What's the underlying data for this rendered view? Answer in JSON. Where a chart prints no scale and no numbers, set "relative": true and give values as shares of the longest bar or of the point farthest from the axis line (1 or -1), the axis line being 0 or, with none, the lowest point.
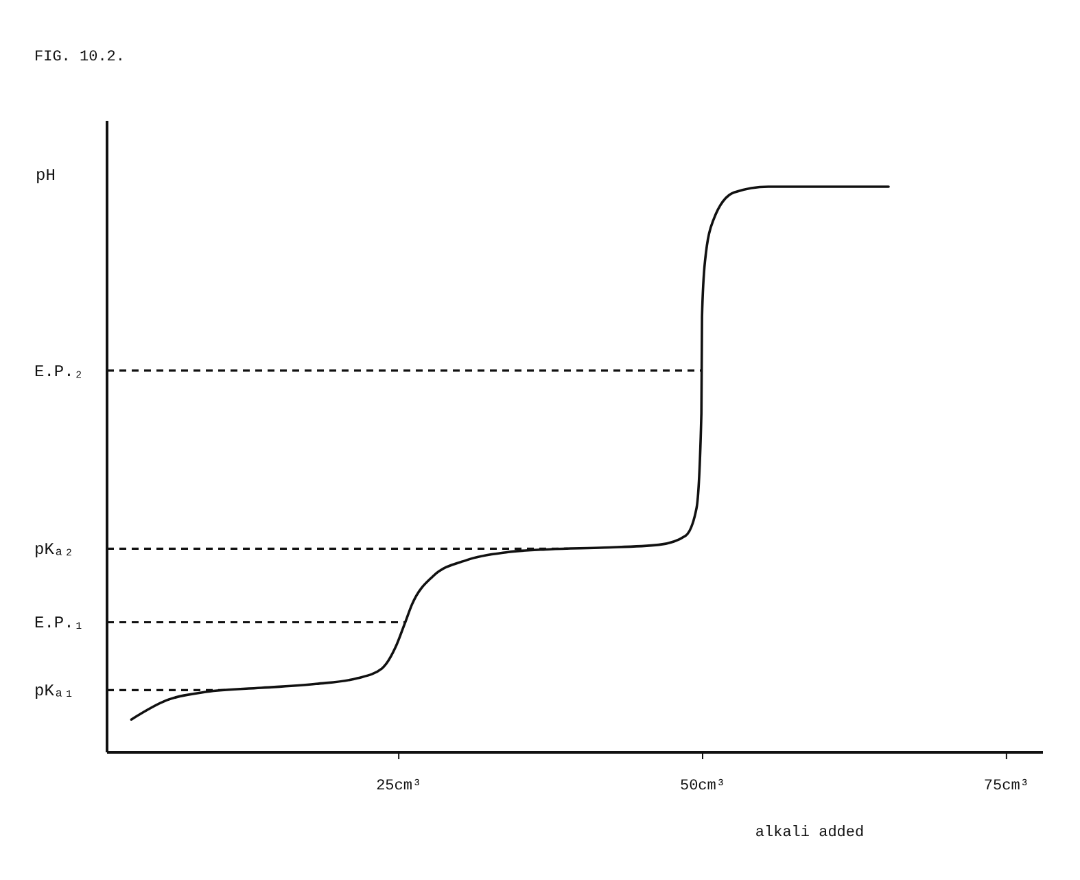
{
  "chart_data": {
    "type": "line",
    "title": "FIG. 10.2.",
    "xlabel": "alkali added",
    "ylabel": "pH",
    "relative": true,
    "xlim": [
      1,
      78
    ],
    "xticks": [
      {
        "value": 25,
        "label": "25cm³"
      },
      {
        "value": 50,
        "label": "50cm³"
      },
      {
        "value": 75,
        "label": "75cm³"
      }
    ],
    "x": [
      3.0,
      5.9,
      9.2,
      13.7,
      18.2,
      21.6,
      23.6,
      24.8,
      25.5,
      26.1,
      27.8,
      30.6,
      34.0,
      37.4,
      41.9,
      46.4,
      48.6,
      49.5,
      49.9,
      49.95,
      50.2,
      50.9,
      52.6,
      55.4,
      65.3
    ],
    "series": [
      {
        "color": "#111111",
        "values": [
          0.058,
          0.092,
          0.107,
          0.114,
          0.121,
          0.131,
          0.148,
          0.189,
          0.228,
          0.262,
          0.311,
          0.34,
          0.354,
          0.359,
          0.362,
          0.367,
          0.383,
          0.432,
          0.6,
          0.77,
          0.869,
          0.942,
          0.99,
          1.0,
          1.0
        ]
      }
    ],
    "marker": "none",
    "line_style": "solid",
    "ref_lines": [
      {
        "axis": "y",
        "value": 0.11,
        "label": "pKₐ₁",
        "line_style": "dashed",
        "color": "#111111"
      },
      {
        "axis": "y",
        "value": 0.23,
        "label": "E.P.₁",
        "line_style": "dashed",
        "color": "#111111"
      },
      {
        "axis": "y",
        "value": 0.36,
        "label": "pKₐ₂",
        "line_style": "dashed",
        "color": "#111111"
      },
      {
        "axis": "y",
        "value": 0.675,
        "label": "E.P.₂",
        "line_style": "dashed",
        "color": "#111111"
      }
    ]
  }
}
